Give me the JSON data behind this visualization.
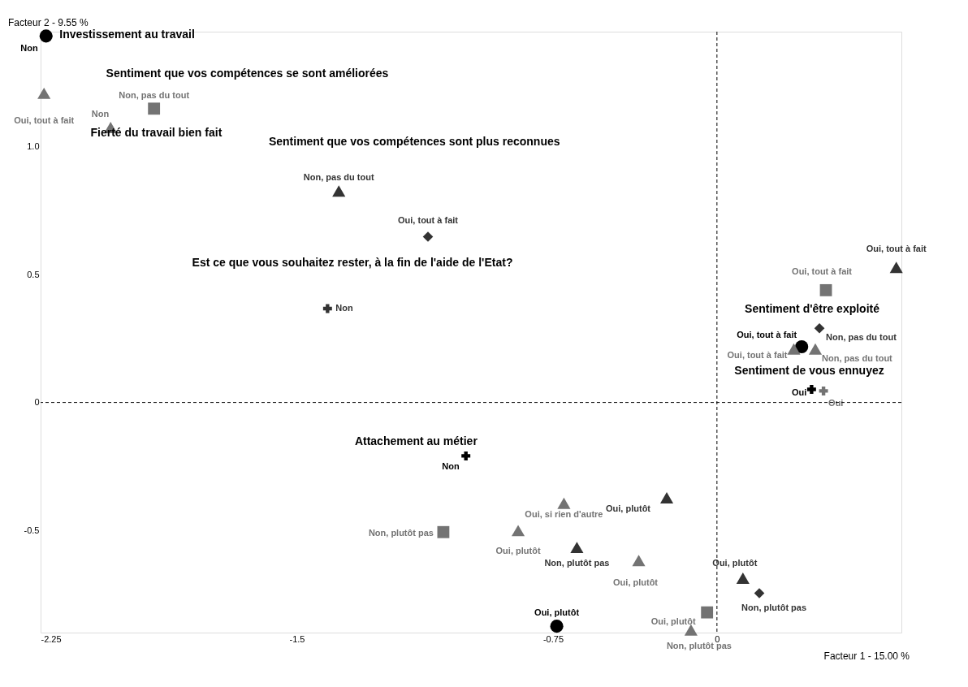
{
  "chart_data": {
    "type": "scatter",
    "xlabel": "Facteur 1  -  15.00 %",
    "ylabel": "Facteur 2  -  9.55 %",
    "xlim": [
      -2.25,
      0.27
    ],
    "ylim": [
      -0.9,
      1.45
    ],
    "xticks": [
      -2.25,
      -1.5,
      -0.75,
      {
        "value": -0.27,
        "label": "0"
      }
    ],
    "yticks": [
      -0.5,
      0,
      0.5,
      {
        "value": 1,
        "label": "1.0"
      }
    ],
    "grid": false,
    "ref_lines": [
      {
        "axis": "x",
        "value": -0.27,
        "line_style": "dashed",
        "color": "#000000"
      },
      {
        "axis": "y",
        "value": 0,
        "line_style": "dashed",
        "color": "#000000"
      }
    ],
    "annotations": [
      "Investissement au travail",
      "Sentiment que vos compétences se sont améliorées",
      "Fierté du travail bien fait",
      "Sentiment que vos compétences sont plus reconnues",
      "Est ce que vous souhaitez rester, à la fin de l'aide de l'Etat?",
      "Attachement au métier",
      "Sentiment d'être exploité",
      "Sentiment de vous ennuyez"
    ],
    "series": [
      {
        "marker": "circle",
        "x": [
          -2.234,
          -0.739,
          -0.022
        ],
        "values": [
          1.433,
          -0.875,
          0.218
        ],
        "colors": [
          "#000000",
          "#000000",
          "#000000"
        ],
        "value_labels": [
          "Non",
          "Oui, plutôt",
          "Oui, tout à fait"
        ]
      },
      {
        "marker": "triangle",
        "x": [
          -2.24,
          -2.045,
          -1.377,
          -0.852,
          -0.68,
          -0.718,
          -0.499,
          -0.346,
          -0.194,
          -0.417,
          0.255,
          -0.045,
          0.018
        ],
        "values": [
          1.209,
          1.075,
          0.827,
          -0.501,
          -0.567,
          -0.394,
          -0.618,
          -0.89,
          -0.687,
          -0.373,
          0.528,
          0.209,
          0.209
        ],
        "colors": [
          "#737373",
          "#737373",
          "#333333",
          "#737373",
          "#333333",
          "#737373",
          "#737373",
          "#737373",
          "#333333",
          "#333333",
          "#333333",
          "#737373",
          "#737373"
        ],
        "value_labels": [
          "Oui, tout à fait",
          "Non",
          "Non, pas du tout",
          "Oui, plutôt",
          "Non, plutôt pas",
          "Oui, si rien d'autre",
          "Oui, plutôt",
          "Non, plutôt pas",
          "Oui, plutôt",
          "Oui, plutôt",
          "Oui, tout à fait",
          "Oui, tout à fait",
          "Non, pas du tout"
        ]
      },
      {
        "marker": "square",
        "x": [
          -1.918,
          -1.071,
          -0.299,
          0.049
        ],
        "values": [
          1.149,
          -0.507,
          -0.821,
          0.439
        ],
        "colors": [
          "#737373",
          "#737373",
          "#737373",
          "#737373"
        ],
        "value_labels": [
          "Non, pas du tout",
          "Non, plutôt pas",
          "Oui, plutôt",
          "Oui, tout à fait"
        ]
      },
      {
        "marker": "diamond",
        "x": [
          -1.116,
          -0.146,
          0.03
        ],
        "values": [
          0.648,
          -0.746,
          0.29
        ],
        "colors": [
          "#333333",
          "#333333",
          "#333333"
        ],
        "value_labels": [
          "Oui, tout à fait",
          "Non, plutôt pas",
          "Non, pas du tout"
        ]
      },
      {
        "marker": "cross",
        "x": [
          -1.41,
          -1.005,
          0.007,
          0.042
        ],
        "values": [
          0.367,
          -0.209,
          0.051,
          0.045
        ],
        "colors": [
          "#333333",
          "#000000",
          "#000000",
          "#737373"
        ],
        "value_labels": [
          "Non",
          "Non",
          "Oui",
          "Oui"
        ]
      }
    ]
  }
}
